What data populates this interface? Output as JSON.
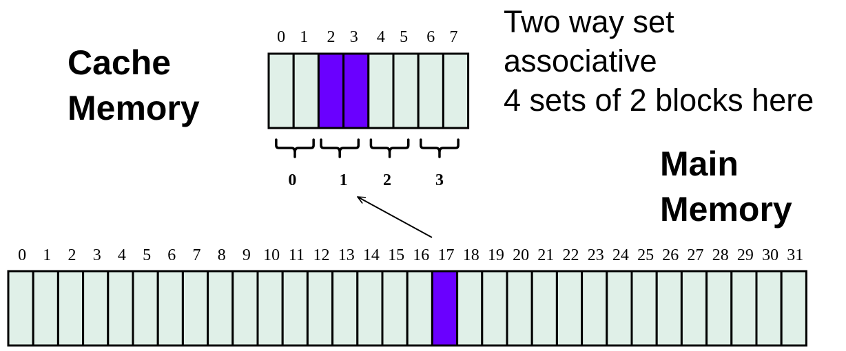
{
  "cache": {
    "title_lines": [
      "Cache",
      "Memory"
    ],
    "blocks": [
      "0",
      "1",
      "2",
      "3",
      "4",
      "5",
      "6",
      "7"
    ],
    "highlighted_blocks": [
      2,
      3
    ],
    "sets": [
      "0",
      "1",
      "2",
      "3"
    ]
  },
  "main": {
    "title_lines": [
      "Main",
      "Memory"
    ],
    "blocks": [
      "0",
      "1",
      "2",
      "3",
      "4",
      "5",
      "6",
      "7",
      "8",
      "9",
      "10",
      "11",
      "12",
      "13",
      "14",
      "15",
      "16",
      "17",
      "18",
      "19",
      "20",
      "21",
      "22",
      "23",
      "24",
      "25",
      "26",
      "27",
      "28",
      "29",
      "30",
      "31"
    ],
    "highlighted_blocks": [
      17
    ]
  },
  "description_lines": [
    "Two way set",
    "associative",
    "4 sets of 2 blocks here"
  ],
  "colors": {
    "cell_fill": "#e0f0e8",
    "highlight": "#6a00ff",
    "stroke": "#000000"
  }
}
